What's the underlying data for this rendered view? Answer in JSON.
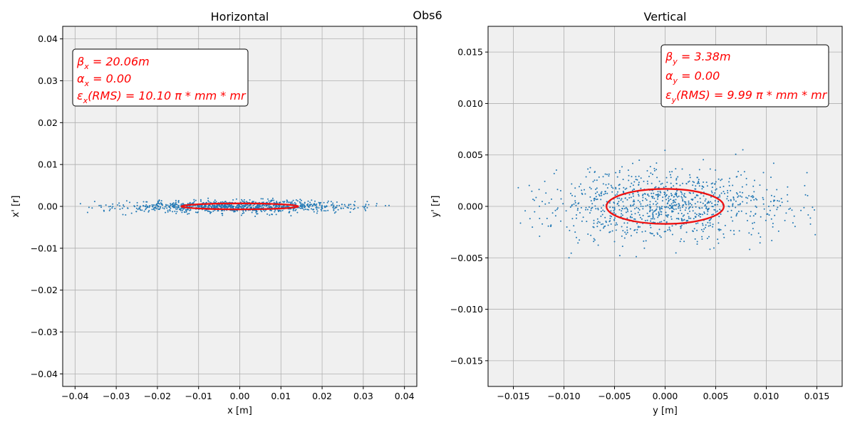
{
  "figure": {
    "suptitle": "Obs6"
  },
  "chart_data": [
    {
      "type": "scatter",
      "title": "Horizontal",
      "xlabel": "x [m]",
      "ylabel": "x' [r]",
      "xlim": [
        -0.043,
        0.043
      ],
      "ylim": [
        -0.043,
        0.043
      ],
      "xticks": [
        -0.04,
        -0.03,
        -0.02,
        -0.01,
        0.0,
        0.01,
        0.02,
        0.03,
        0.04
      ],
      "xtick_labels": [
        "−0.04",
        "−0.03",
        "−0.02",
        "−0.01",
        "0.00",
        "0.01",
        "0.02",
        "0.03",
        "0.04"
      ],
      "yticks": [
        -0.04,
        -0.03,
        -0.02,
        -0.01,
        0.0,
        0.01,
        0.02,
        0.03,
        0.04
      ],
      "ytick_labels": [
        "−0.04",
        "−0.03",
        "−0.02",
        "−0.01",
        "0.00",
        "0.01",
        "0.02",
        "0.03",
        "0.04"
      ],
      "grid": true,
      "background": "#f0f0f0",
      "point_color": "#1f77b4",
      "ellipse_color": "#ee1111",
      "particles": {
        "count": 1000,
        "x_sigma": 0.0142,
        "xp_sigma": 0.00071,
        "x_range": [
          -0.04,
          0.04
        ]
      },
      "ellipse": {
        "center": [
          0.0,
          0.0
        ],
        "semi_x": 0.0142,
        "semi_y": 0.00071
      },
      "annotation": {
        "position": "top-left",
        "lines": [
          {
            "sym": "β",
            "sub": "x",
            "rest": " = 20.06m"
          },
          {
            "sym": "α",
            "sub": "x",
            "rest": " = 0.00"
          },
          {
            "sym": "ε",
            "sub": "x",
            "rest": "(RMS) = 10.10 π * mm * mr"
          }
        ]
      }
    },
    {
      "type": "scatter",
      "title": "Vertical",
      "xlabel": "y [m]",
      "ylabel": "y' [r]",
      "xlim": [
        -0.0175,
        0.0175
      ],
      "ylim": [
        -0.0175,
        0.0175
      ],
      "xticks": [
        -0.015,
        -0.01,
        -0.005,
        0.0,
        0.005,
        0.01,
        0.015
      ],
      "xtick_labels": [
        "−0.015",
        "−0.010",
        "−0.005",
        "0.000",
        "0.005",
        "0.010",
        "0.015"
      ],
      "yticks": [
        -0.015,
        -0.01,
        -0.005,
        0.0,
        0.005,
        0.01,
        0.015
      ],
      "ytick_labels": [
        "−0.015",
        "−0.010",
        "−0.005",
        "0.000",
        "0.005",
        "0.010",
        "0.015"
      ],
      "grid": true,
      "background": "#f0f0f0",
      "point_color": "#1f77b4",
      "ellipse_color": "#ee1111",
      "particles": {
        "count": 1000,
        "x_sigma": 0.0058,
        "xp_sigma": 0.0017,
        "x_range": [
          -0.0165,
          0.0165
        ]
      },
      "ellipse": {
        "center": [
          0.0,
          0.0
        ],
        "semi_x": 0.0058,
        "semi_y": 0.0017
      },
      "annotation": {
        "position": "top-right",
        "lines": [
          {
            "sym": "β",
            "sub": "y",
            "rest": " = 3.38m"
          },
          {
            "sym": "α",
            "sub": "y",
            "rest": " = 0.00"
          },
          {
            "sym": "ε",
            "sub": "y",
            "rest": "(RMS) = 9.99 π * mm * mr"
          }
        ]
      }
    }
  ]
}
